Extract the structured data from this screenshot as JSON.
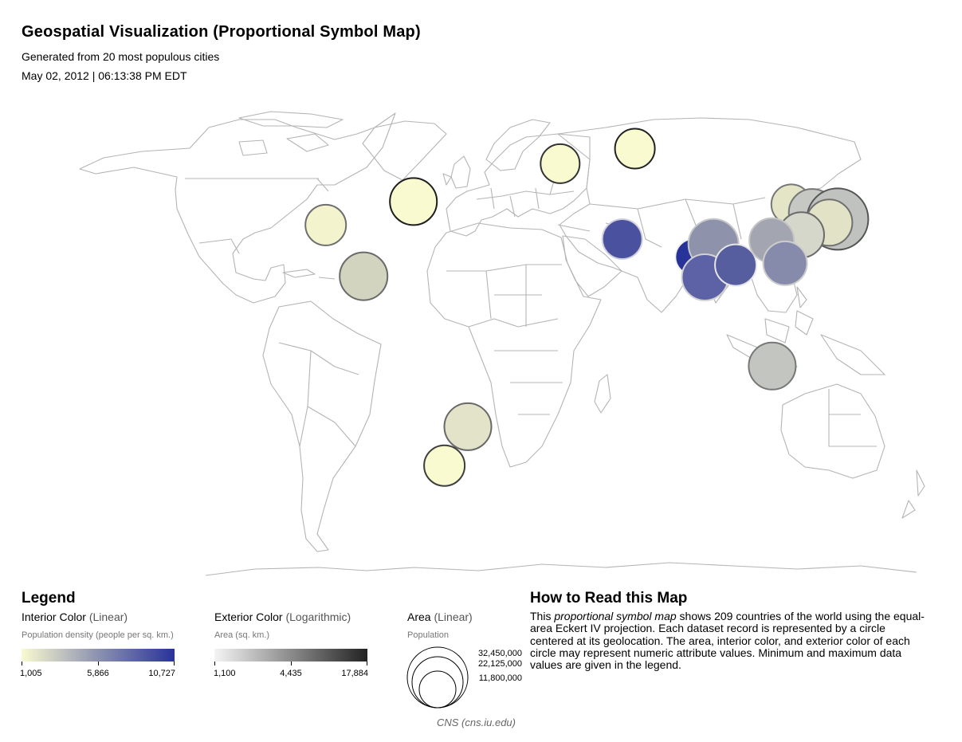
{
  "header": {
    "title": "Geospatial Visualization (Proportional Symbol Map)",
    "subtitle": "Generated from 20 most populous cities",
    "timestamp": "May 02, 2012 | 06:13:38 PM EDT"
  },
  "legend": {
    "title": "Legend",
    "interior": {
      "label": "Interior Color",
      "scale": "(Linear)",
      "attribute": "Population density (people per sq. km.)",
      "ticks": [
        "1,005",
        "5,866",
        "10,727"
      ],
      "color_low": "#fafad0",
      "color_mid": "#8c92b0",
      "color_high": "#28339a"
    },
    "exterior": {
      "label": "Exterior Color",
      "scale": "(Logarithmic)",
      "attribute": "Area (sq. km.)",
      "ticks": [
        "1,100",
        "4,435",
        "17,884"
      ],
      "color_low": "#f4f4f4",
      "color_high": "#222222"
    },
    "size": {
      "label": "Area",
      "scale": "(Linear)",
      "attribute": "Population",
      "values": [
        "32,450,000",
        "22,125,000",
        "11,800,000"
      ]
    }
  },
  "howto": {
    "title": "How to Read this Map",
    "text_before": "This ",
    "text_em": "proportional symbol map",
    "text_after": " shows 209 countries of the world using the equal-area Eckert IV projection. Each dataset record is represented by a circle centered at its geolocation. The area, interior color, and exterior color of each circle may represent numeric attribute values. Minimum and maximum data values are given in the legend."
  },
  "credit": "CNS (cns.iu.edu)",
  "map_data": {
    "projection": "Eckert IV",
    "basemap_color": "#b4b4b4",
    "symbols": [
      {
        "name": "los-angeles",
        "lon": -118.2,
        "lat": 34.0,
        "fill": "#f3f4cd",
        "stroke": "#6e6e6e"
      },
      {
        "name": "mexico-city",
        "lon": -99.1,
        "lat": 19.4,
        "fill": "#d3d4c0",
        "stroke": "#6a6a6a"
      },
      {
        "name": "new-york",
        "lon": -74.0,
        "lat": 40.7,
        "fill": "#fafad0",
        "stroke": "#1e1e1e"
      },
      {
        "name": "sao-paulo",
        "lon": -46.6,
        "lat": -23.5,
        "fill": "#e2e3c8",
        "stroke": "#686868"
      },
      {
        "name": "buenos-aires",
        "lon": -58.4,
        "lat": -34.6,
        "fill": "#fafad0",
        "stroke": "#3e3e3e"
      },
      {
        "name": "london",
        "lon": -0.1,
        "lat": 51.5,
        "fill": "#fafad0",
        "stroke": "#333333"
      },
      {
        "name": "moscow",
        "lon": 37.6,
        "lat": 55.8,
        "fill": "#fafad0",
        "stroke": "#222222"
      },
      {
        "name": "cairo",
        "lon": 31.2,
        "lat": 30.0,
        "fill": "#4a519e",
        "stroke": "#cfcfdd"
      },
      {
        "name": "karachi",
        "lon": 67.0,
        "lat": 24.9,
        "fill": "#28339a",
        "stroke": "#f2f2f2"
      },
      {
        "name": "delhi",
        "lon": 77.2,
        "lat": 28.6,
        "fill": "#8e93ab",
        "stroke": "#c8c8c8"
      },
      {
        "name": "mumbai",
        "lon": 72.9,
        "lat": 19.1,
        "fill": "#5c62a5",
        "stroke": "#d2d2d2"
      },
      {
        "name": "kolkata",
        "lon": 88.4,
        "lat": 22.6,
        "fill": "#575e9f",
        "stroke": "#e6e6e6"
      },
      {
        "name": "beijing",
        "lon": 116.4,
        "lat": 39.9,
        "fill": "#e3e5c6",
        "stroke": "#777777"
      },
      {
        "name": "seoul",
        "lon": 127.0,
        "lat": 37.6,
        "fill": "#c6c8c4",
        "stroke": "#777777"
      },
      {
        "name": "tokyo",
        "lon": 139.7,
        "lat": 35.7,
        "fill": "#bfc2bf",
        "stroke": "#555555"
      },
      {
        "name": "osaka",
        "lon": 135.5,
        "lat": 34.7,
        "fill": "#e1e2c6",
        "stroke": "#707070"
      },
      {
        "name": "shanghai",
        "lon": 121.5,
        "lat": 31.2,
        "fill": "#d6d7cb",
        "stroke": "#6a6a6a"
      },
      {
        "name": "chongqing",
        "lon": 106.5,
        "lat": 29.6,
        "fill": "#a3a6b1",
        "stroke": "#c4c4c4"
      },
      {
        "name": "guangzhou",
        "lon": 113.3,
        "lat": 23.1,
        "fill": "#868bab",
        "stroke": "#cccccc"
      },
      {
        "name": "jakarta",
        "lon": 106.8,
        "lat": -6.2,
        "fill": "#c3c5c0",
        "stroke": "#777777"
      }
    ]
  }
}
